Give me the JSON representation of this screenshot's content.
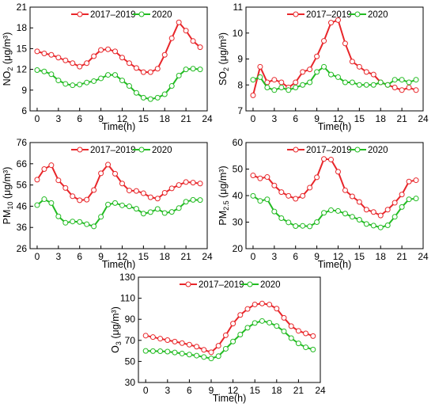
{
  "x_hours": [
    0,
    1,
    2,
    3,
    4,
    5,
    6,
    7,
    8,
    9,
    10,
    11,
    12,
    13,
    14,
    15,
    16,
    17,
    18,
    19,
    20,
    21,
    22,
    23
  ],
  "colors": {
    "baseline": "#e8262a",
    "current": "#22bb22"
  },
  "chart_data": [
    {
      "type": "line",
      "ylabel_main": "NO",
      "ylabel_sub": "2",
      "ylabel_unit": " (μg/m³)",
      "xlabel": "Time(h)",
      "xlim": [
        -1,
        24
      ],
      "ylim": [
        6,
        21
      ],
      "xticks": [
        "0",
        "3",
        "6",
        "9",
        "12",
        "15",
        "18",
        "21",
        "24"
      ],
      "yticks": [
        "6",
        "9",
        "12",
        "15",
        "18",
        "21"
      ],
      "series": [
        {
          "name": "2017–2019",
          "values": [
            14.6,
            14.3,
            14.1,
            13.7,
            13.3,
            12.9,
            12.4,
            12.9,
            13.9,
            14.8,
            14.9,
            14.6,
            13.7,
            12.9,
            12.2,
            11.6,
            11.6,
            12.1,
            14.1,
            16.5,
            18.8,
            17.6,
            16.1,
            15.2
          ]
        },
        {
          "name": "2020",
          "values": [
            11.9,
            11.7,
            11.3,
            10.4,
            9.9,
            9.7,
            9.8,
            10.1,
            10.3,
            10.7,
            11.2,
            11.2,
            10.4,
            9.6,
            8.6,
            7.9,
            7.7,
            7.9,
            8.4,
            9.6,
            11.1,
            12.0,
            12.1,
            12.0
          ]
        }
      ]
    },
    {
      "type": "line",
      "ylabel_main": "SO",
      "ylabel_sub": "2",
      "ylabel_unit": " (μg/m³)",
      "xlabel": "Time(h)",
      "xlim": [
        -1,
        24
      ],
      "ylim": [
        7,
        11
      ],
      "xticks": [
        "0",
        "3",
        "6",
        "9",
        "12",
        "15",
        "18",
        "21",
        "24"
      ],
      "yticks": [
        "7",
        "8",
        "9",
        "10",
        "11"
      ],
      "series": [
        {
          "name": "2017–2019",
          "values": [
            7.6,
            8.7,
            8.1,
            8.2,
            8.1,
            7.9,
            8.1,
            8.5,
            8.6,
            9.1,
            9.7,
            10.4,
            10.5,
            9.6,
            8.9,
            8.7,
            8.5,
            8.4,
            8.1,
            8.0,
            7.9,
            7.8,
            7.9,
            7.8
          ]
        },
        {
          "name": "2020",
          "values": [
            8.2,
            8.3,
            7.9,
            7.8,
            7.9,
            7.8,
            7.9,
            8.0,
            8.1,
            8.5,
            8.7,
            8.4,
            8.3,
            8.1,
            8.1,
            8.0,
            8.0,
            8.0,
            8.1,
            8.0,
            8.2,
            8.2,
            8.1,
            8.2
          ]
        }
      ]
    },
    {
      "type": "line",
      "ylabel_main": "PM",
      "ylabel_sub": "10",
      "ylabel_unit": " (μg/m³)",
      "xlabel": "Time(h)",
      "xlim": [
        -1,
        24
      ],
      "ylim": [
        26,
        76
      ],
      "xticks": [
        "0",
        "3",
        "6",
        "9",
        "12",
        "15",
        "18",
        "21",
        "24"
      ],
      "yticks": [
        "26",
        "36",
        "46",
        "56",
        "66",
        "76"
      ],
      "series": [
        {
          "name": "2017–2019",
          "values": [
            58.5,
            63.5,
            65.3,
            58.2,
            54.6,
            50.7,
            48.8,
            49.1,
            53.6,
            61.5,
            65.6,
            61.3,
            56.7,
            53.4,
            53.2,
            52.1,
            50.2,
            49.6,
            52.3,
            54.4,
            56.0,
            57.4,
            57.1,
            56.7
          ]
        },
        {
          "name": "2020",
          "values": [
            46.5,
            49.3,
            47.5,
            41.2,
            38.2,
            38.8,
            38.6,
            37.5,
            36.5,
            41.0,
            46.8,
            47.5,
            46.4,
            45.9,
            44.8,
            42.5,
            43.2,
            44.7,
            42.8,
            43.3,
            45.1,
            48.1,
            49.0,
            48.9
          ]
        }
      ]
    },
    {
      "type": "line",
      "ylabel_main": "PM",
      "ylabel_sub": "2.5",
      "ylabel_unit": " (μg/m³)",
      "xlabel": "Time(h)",
      "xlim": [
        -1,
        24
      ],
      "ylim": [
        20,
        60
      ],
      "xticks": [
        "0",
        "3",
        "6",
        "9",
        "12",
        "15",
        "18",
        "21",
        "24"
      ],
      "yticks": [
        "20",
        "30",
        "40",
        "50",
        "60"
      ],
      "series": [
        {
          "name": "2017–2019",
          "values": [
            47.6,
            46.5,
            47.0,
            43.8,
            41.3,
            39.9,
            38.8,
            39.9,
            43.0,
            46.9,
            53.8,
            53.6,
            49.0,
            42.0,
            39.7,
            37.6,
            34.7,
            33.8,
            32.5,
            34.7,
            37.3,
            40.4,
            45.3,
            45.8
          ]
        },
        {
          "name": "2020",
          "values": [
            39.9,
            38.0,
            38.6,
            34.0,
            31.5,
            29.9,
            28.5,
            28.6,
            28.4,
            30.0,
            33.5,
            34.5,
            34.2,
            33.2,
            32.0,
            30.9,
            29.3,
            28.7,
            28.0,
            28.8,
            32.0,
            35.7,
            38.6,
            38.9
          ]
        }
      ]
    },
    {
      "type": "line",
      "ylabel_main": "O",
      "ylabel_sub": "3",
      "ylabel_unit": " (μg/m³)",
      "xlabel": "Time(h)",
      "xlim": [
        -1,
        24
      ],
      "ylim": [
        30,
        130
      ],
      "xticks": [
        "0",
        "3",
        "6",
        "9",
        "12",
        "15",
        "18",
        "21",
        "24"
      ],
      "yticks": [
        "30",
        "50",
        "70",
        "90",
        "110",
        "130"
      ],
      "series": [
        {
          "name": "2017–2019",
          "values": [
            74.5,
            73.1,
            71.6,
            70.2,
            68.8,
            67.4,
            65.9,
            64.0,
            61.0,
            58.7,
            64.9,
            74.8,
            85.9,
            94.1,
            99.8,
            104.1,
            105.0,
            104.0,
            100.1,
            91.4,
            83.5,
            79.0,
            76.6,
            74.1
          ]
        },
        {
          "name": "2020",
          "values": [
            60.0,
            59.8,
            59.7,
            59.3,
            58.5,
            57.5,
            56.5,
            55.5,
            54.2,
            52.8,
            55.0,
            62.0,
            68.9,
            75.5,
            82.0,
            86.5,
            88.4,
            86.8,
            83.6,
            78.6,
            72.1,
            67.1,
            63.4,
            61.3
          ]
        }
      ]
    }
  ]
}
